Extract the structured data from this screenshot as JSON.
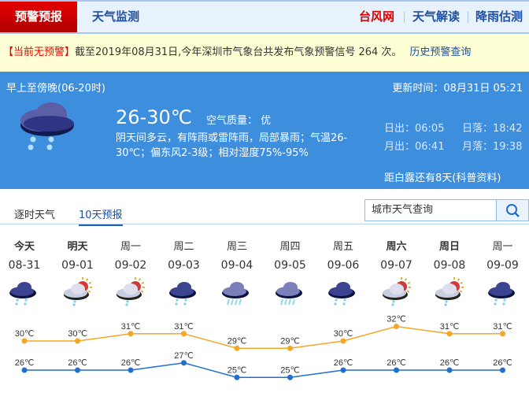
{
  "nav": {
    "active": "预警预报",
    "items": [
      "天气监测"
    ],
    "right": [
      {
        "label": "台风网",
        "color": "#e00000"
      },
      {
        "label": "天气解读",
        "color": "#1e4fa3"
      },
      {
        "label": "降雨估测",
        "color": "#1e4fa3"
      }
    ]
  },
  "warning": {
    "status": "【当前无预警】",
    "text": "截至2019年08月31日,今年深圳市气象台共发布气象预警信号 264 次。",
    "link": "历史预警查询"
  },
  "today": {
    "period": "早上至傍晚(06-20时)",
    "update": "更新时间：08月31日 05:21",
    "temp": "26-30℃",
    "aqi": "空气质量： 优",
    "desc": "阴天间多云，有阵雨或雷阵雨，局部暴雨；气温26-30℃；偏东风2-3级；相对湿度75%-95%",
    "sunrise": "日出：06:05",
    "sunset": "日落：18:42",
    "moonrise": "月出：06:41",
    "moonset": "月落：19:38",
    "solar_term": "距白露还有8天(科普资料)",
    "icon": "cloud-rain-icon"
  },
  "tabs": [
    {
      "label": "逐时天气"
    },
    {
      "label": "10天预报",
      "active": true
    }
  ],
  "search": {
    "placeholder": "城市天气查询"
  },
  "forecast": [
    {
      "day": "今天",
      "date": "08-31",
      "icon": "cloud-rain",
      "bold": true
    },
    {
      "day": "明天",
      "date": "09-01",
      "icon": "sun-cloud-rain",
      "bold": true
    },
    {
      "day": "周一",
      "date": "09-02",
      "icon": "sun-cloud-rain"
    },
    {
      "day": "周二",
      "date": "09-03",
      "icon": "cloud-rain"
    },
    {
      "day": "周三",
      "date": "09-04",
      "icon": "heavy-rain"
    },
    {
      "day": "周四",
      "date": "09-05",
      "icon": "heavy-rain"
    },
    {
      "day": "周五",
      "date": "09-06",
      "icon": "cloud-rain"
    },
    {
      "day": "周六",
      "date": "09-07",
      "icon": "sun-cloud-rain",
      "bold": true
    },
    {
      "day": "周日",
      "date": "09-08",
      "icon": "sun-cloud-rain",
      "bold": true
    },
    {
      "day": "周一",
      "date": "09-09",
      "icon": "cloud-rain"
    }
  ],
  "chart_data": {
    "type": "line",
    "categories": [
      "08-31",
      "09-01",
      "09-02",
      "09-03",
      "09-04",
      "09-05",
      "09-06",
      "09-07",
      "09-08",
      "09-09"
    ],
    "unit": "℃",
    "series": [
      {
        "key": "high",
        "color": "#f5a623",
        "values": [
          30,
          30,
          31,
          31,
          29,
          29,
          30,
          32,
          31,
          31
        ]
      },
      {
        "key": "low",
        "color": "#1e6fd0",
        "values": [
          26,
          26,
          26,
          27,
          25,
          25,
          26,
          26,
          26,
          26
        ]
      }
    ]
  }
}
